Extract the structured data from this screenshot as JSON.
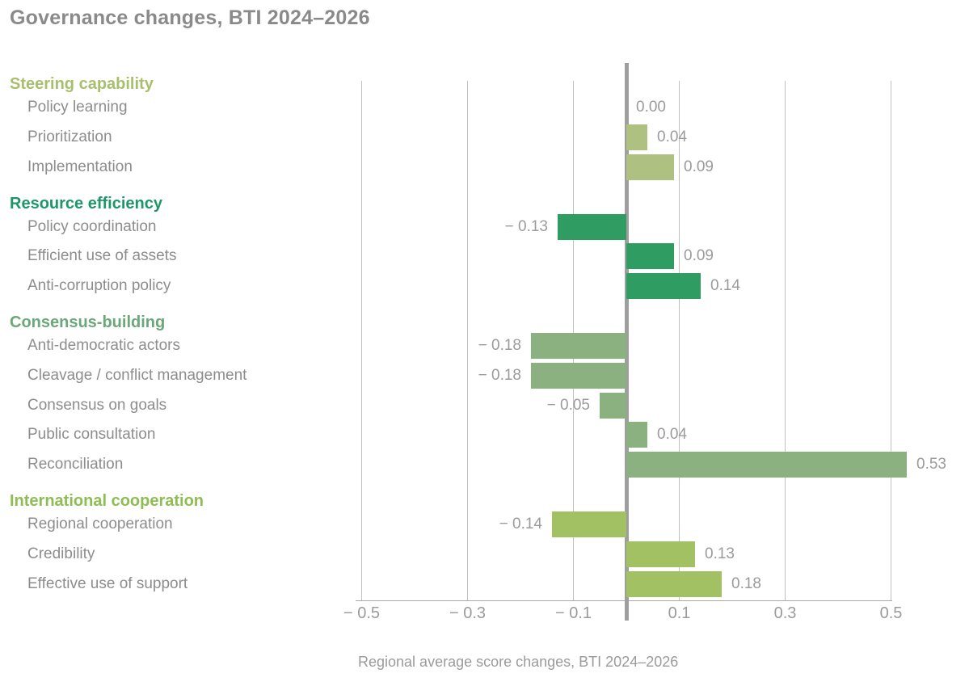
{
  "title": "Governance changes, BTI 2024–2026",
  "chart_data": {
    "type": "bar",
    "orientation": "horizontal",
    "title": "Governance changes, BTI 2024–2026",
    "xlabel": "Regional average score changes, BTI 2024–2026",
    "xlim": [
      -0.51,
      0.51
    ],
    "grid": "vertical",
    "legend": "none",
    "xticks": [
      {
        "value": -0.5,
        "label": "− 0.5"
      },
      {
        "value": -0.3,
        "label": "− 0.3"
      },
      {
        "value": -0.1,
        "label": "− 0.1"
      },
      {
        "value": 0.1,
        "label": "0.1"
      },
      {
        "value": 0.3,
        "label": "0.3"
      },
      {
        "value": 0.5,
        "label": "0.5"
      }
    ],
    "groups": [
      {
        "name": "Steering capability",
        "header_color": "#a8bf6e",
        "bar_color": "#aec181",
        "items": [
          {
            "label": "Policy learning",
            "value": 0.0,
            "display": "0.00"
          },
          {
            "label": "Prioritization",
            "value": 0.04,
            "display": "0.04"
          },
          {
            "label": "Implementation",
            "value": 0.09,
            "display": "0.09"
          }
        ]
      },
      {
        "name": "Resource efficiency",
        "header_color": "#1d9767",
        "bar_color": "#2f9d62",
        "items": [
          {
            "label": "Policy coordination",
            "value": -0.13,
            "display": "− 0.13"
          },
          {
            "label": "Efficient use of assets",
            "value": 0.09,
            "display": "0.09"
          },
          {
            "label": "Anti-corruption policy",
            "value": 0.14,
            "display": "0.14"
          }
        ]
      },
      {
        "name": "Consensus-building",
        "header_color": "#6ba878",
        "bar_color": "#8bb181",
        "items": [
          {
            "label": "Anti-democratic actors",
            "value": -0.18,
            "display": "− 0.18"
          },
          {
            "label": "Cleavage / conflict management",
            "value": -0.18,
            "display": "− 0.18"
          },
          {
            "label": "Consensus on goals",
            "value": -0.05,
            "display": "− 0.05"
          },
          {
            "label": "Public consultation",
            "value": 0.04,
            "display": "0.04"
          },
          {
            "label": "Reconciliation",
            "value": 0.53,
            "display": "0.53"
          }
        ]
      },
      {
        "name": "International cooperation",
        "header_color": "#8dbd53",
        "bar_color": "#a2c162",
        "items": [
          {
            "label": "Regional cooperation",
            "value": -0.14,
            "display": "− 0.14"
          },
          {
            "label": "Credibility",
            "value": 0.13,
            "display": "0.13"
          },
          {
            "label": "Effective use of support",
            "value": 0.18,
            "display": "0.18"
          }
        ]
      }
    ]
  }
}
